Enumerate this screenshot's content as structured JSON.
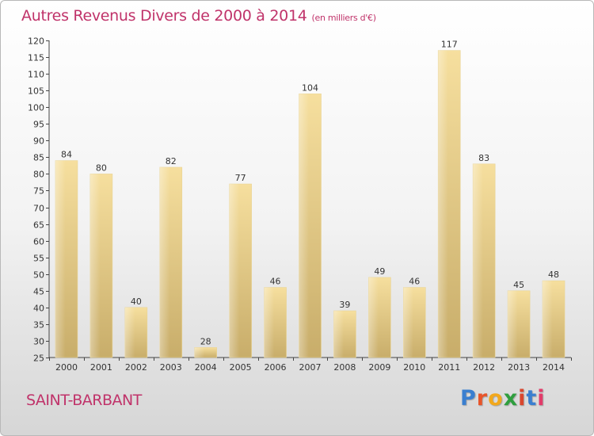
{
  "title": "Autres Revenus Divers de 2000 à 2014",
  "unit_note": "(en milliers d'€)",
  "commune": "SAINT-BARBANT",
  "logo": {
    "text": "Proxiti",
    "letter_colors": [
      "#3a7fd0",
      "#e8552a",
      "#f2a81c",
      "#2f9e3e",
      "#d9472f",
      "#3a7fd0",
      "#e23c6a"
    ]
  },
  "colors": {
    "title": "#c0336a",
    "bar_light": "#f6df9e",
    "bar_dark": "#c8ad6a"
  },
  "chart_data": {
    "type": "bar",
    "title": "Autres Revenus Divers de 2000 à 2014",
    "subtitle": "(en milliers d'€)",
    "categories": [
      "2000",
      "2001",
      "2002",
      "2003",
      "2004",
      "2005",
      "2006",
      "2007",
      "2008",
      "2009",
      "2010",
      "2011",
      "2012",
      "2013",
      "2014"
    ],
    "values": [
      84,
      80,
      40,
      82,
      28,
      77,
      46,
      104,
      39,
      49,
      46,
      117,
      83,
      45,
      48
    ],
    "ylim": [
      25,
      120
    ],
    "yticks": [
      25,
      30,
      35,
      40,
      45,
      50,
      55,
      60,
      65,
      70,
      75,
      80,
      85,
      90,
      95,
      100,
      105,
      110,
      115,
      120
    ],
    "grid": false,
    "legend": "none"
  }
}
